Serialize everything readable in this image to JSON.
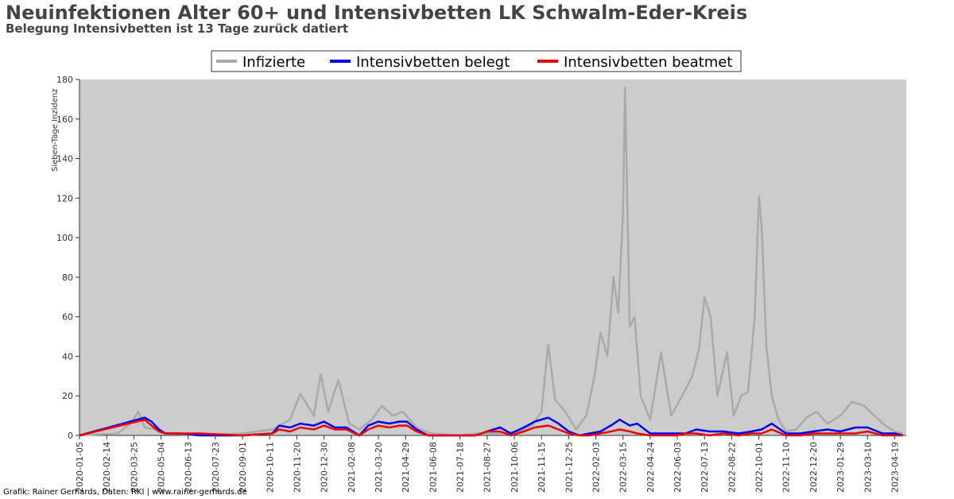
{
  "header": {
    "title": "Neuinfektionen Alter 60+ und Intensivbetten LK Schwalm-Eder-Kreis",
    "subtitle": "Belegung Intensivbetten ist 13 Tage zurück datiert"
  },
  "footer": {
    "credit": "Grafik: Rainer Gerhards, Daten: RKI | www.rainer-gerhards.de"
  },
  "colors": {
    "infected": "#aaaaaa",
    "icu_occupied": "#0000ee",
    "icu_ventilated": "#ee0000",
    "plot_bg": "#cccccc"
  },
  "chart_data": {
    "type": "line",
    "ylabel": "Sieben-Tage Inzidenz",
    "ylim": [
      0,
      180
    ],
    "yticks": [
      0,
      20,
      40,
      60,
      80,
      100,
      120,
      140,
      160,
      180
    ],
    "xlim": [
      "2020-01-05",
      "2023-05-06"
    ],
    "xticks": [
      "2020-01-05",
      "2020-02-14",
      "2020-03-25",
      "2020-05-04",
      "2020-06-13",
      "2020-07-23",
      "2020-09-01",
      "2020-10-11",
      "2020-11-20",
      "2020-12-30",
      "2021-02-08",
      "2021-03-20",
      "2021-04-29",
      "2021-06-08",
      "2021-07-18",
      "2021-08-27",
      "2021-10-06",
      "2021-11-15",
      "2021-12-25",
      "2022-02-03",
      "2022-03-15",
      "2022-04-24",
      "2022-06-03",
      "2022-07-13",
      "2022-08-22",
      "2022-10-01",
      "2022-11-10",
      "2022-12-20",
      "2023-01-29",
      "2023-03-10",
      "2023-04-19"
    ],
    "legend": {
      "position": "top-center",
      "entries": [
        "Infizierte",
        "Intensivbetten belegt",
        "Intensivbetten beatmet"
      ]
    },
    "series": [
      {
        "name": "Infizierte",
        "x": [
          "2020-01-05",
          "2020-03-01",
          "2020-03-20",
          "2020-04-01",
          "2020-04-10",
          "2020-04-25",
          "2020-05-15",
          "2020-07-01",
          "2020-09-01",
          "2020-10-15",
          "2020-11-10",
          "2020-11-25",
          "2020-12-15",
          "2020-12-25",
          "2021-01-05",
          "2021-01-20",
          "2021-02-05",
          "2021-02-20",
          "2021-03-10",
          "2021-03-25",
          "2021-04-10",
          "2021-04-25",
          "2021-05-15",
          "2021-06-05",
          "2021-07-15",
          "2021-08-15",
          "2021-09-15",
          "2021-10-15",
          "2021-11-01",
          "2021-11-15",
          "2021-11-25",
          "2021-12-05",
          "2021-12-20",
          "2022-01-05",
          "2022-01-20",
          "2022-02-01",
          "2022-02-10",
          "2022-02-20",
          "2022-03-01",
          "2022-03-08",
          "2022-03-15",
          "2022-03-18",
          "2022-03-25",
          "2022-04-01",
          "2022-04-10",
          "2022-04-24",
          "2022-05-10",
          "2022-05-25",
          "2022-06-10",
          "2022-06-25",
          "2022-07-05",
          "2022-07-13",
          "2022-07-22",
          "2022-08-01",
          "2022-08-15",
          "2022-08-25",
          "2022-09-05",
          "2022-09-15",
          "2022-09-25",
          "2022-10-01",
          "2022-10-05",
          "2022-10-12",
          "2022-10-20",
          "2022-10-30",
          "2022-11-10",
          "2022-11-25",
          "2022-12-10",
          "2022-12-25",
          "2023-01-10",
          "2023-01-29",
          "2023-02-15",
          "2023-03-05",
          "2023-03-20",
          "2023-04-05",
          "2023-04-19",
          "2023-05-01"
        ],
        "values": [
          0,
          1,
          6,
          12,
          4,
          3,
          1,
          0,
          1,
          3,
          8,
          21,
          10,
          31,
          12,
          28,
          6,
          3,
          8,
          15,
          10,
          12,
          4,
          1,
          0,
          1,
          1,
          2,
          5,
          12,
          46,
          18,
          12,
          3,
          10,
          30,
          52,
          40,
          80,
          62,
          112,
          176,
          55,
          60,
          20,
          8,
          42,
          10,
          20,
          30,
          44,
          70,
          60,
          20,
          42,
          10,
          20,
          22,
          60,
          121,
          106,
          45,
          20,
          8,
          2,
          3,
          9,
          12,
          6,
          10,
          17,
          15,
          10,
          5,
          2,
          1
        ]
      },
      {
        "name": "Intensivbetten belegt",
        "x": [
          "2020-01-05",
          "2020-04-10",
          "2020-04-20",
          "2020-05-01",
          "2020-05-10",
          "2020-05-20",
          "2020-06-01",
          "2020-07-01",
          "2020-09-01",
          "2020-10-15",
          "2020-10-25",
          "2020-11-10",
          "2020-11-25",
          "2020-12-15",
          "2020-12-30",
          "2021-01-15",
          "2021-02-01",
          "2021-02-20",
          "2021-03-05",
          "2021-03-20",
          "2021-04-05",
          "2021-04-20",
          "2021-05-01",
          "2021-05-15",
          "2021-06-01",
          "2021-08-10",
          "2021-08-27",
          "2021-09-15",
          "2021-10-01",
          "2021-10-20",
          "2021-11-05",
          "2021-11-25",
          "2021-12-10",
          "2021-12-25",
          "2022-01-10",
          "2022-01-25",
          "2022-02-10",
          "2022-02-25",
          "2022-03-10",
          "2022-03-25",
          "2022-04-05",
          "2022-04-24",
          "2022-06-01",
          "2022-06-15",
          "2022-07-01",
          "2022-07-20",
          "2022-08-10",
          "2022-09-01",
          "2022-09-20",
          "2022-10-05",
          "2022-10-20",
          "2022-11-10",
          "2022-12-01",
          "2022-12-20",
          "2023-01-10",
          "2023-01-29",
          "2023-02-20",
          "2023-03-10",
          "2023-04-01",
          "2023-04-19",
          "2023-05-01"
        ],
        "values": [
          0,
          9,
          7,
          3,
          1,
          1,
          1,
          0,
          0,
          1,
          5,
          4,
          6,
          5,
          7,
          4,
          4,
          0,
          5,
          7,
          6,
          7,
          7,
          3,
          0,
          0,
          2,
          4,
          1,
          4,
          7,
          9,
          6,
          2,
          0,
          1,
          2,
          5,
          8,
          5,
          6,
          1,
          1,
          1,
          3,
          2,
          2,
          1,
          2,
          3,
          6,
          1,
          1,
          2,
          3,
          2,
          4,
          4,
          1,
          1,
          0
        ]
      },
      {
        "name": "Intensivbetten beatmet",
        "x": [
          "2020-01-05",
          "2020-04-10",
          "2020-04-20",
          "2020-05-01",
          "2020-05-10",
          "2020-05-20",
          "2020-06-01",
          "2020-07-01",
          "2020-09-01",
          "2020-10-15",
          "2020-10-25",
          "2020-11-10",
          "2020-11-25",
          "2020-12-15",
          "2020-12-30",
          "2021-01-15",
          "2021-02-01",
          "2021-02-20",
          "2021-03-05",
          "2021-03-20",
          "2021-04-05",
          "2021-04-20",
          "2021-05-01",
          "2021-05-15",
          "2021-06-01",
          "2021-08-10",
          "2021-08-27",
          "2021-09-15",
          "2021-10-01",
          "2021-10-20",
          "2021-11-05",
          "2021-11-25",
          "2021-12-10",
          "2021-12-25",
          "2022-01-10",
          "2022-01-25",
          "2022-02-10",
          "2022-02-25",
          "2022-03-10",
          "2022-03-25",
          "2022-04-05",
          "2022-04-24",
          "2022-06-01",
          "2022-06-15",
          "2022-07-01",
          "2022-07-20",
          "2022-08-10",
          "2022-09-01",
          "2022-09-20",
          "2022-10-05",
          "2022-10-20",
          "2022-11-10",
          "2022-12-01",
          "2022-12-20",
          "2023-01-10",
          "2023-01-29",
          "2023-02-20",
          "2023-03-10",
          "2023-04-01",
          "2023-04-19",
          "2023-05-01"
        ],
        "values": [
          0,
          8,
          5,
          2,
          1,
          1,
          1,
          1,
          0,
          1,
          3,
          2,
          4,
          3,
          5,
          3,
          3,
          0,
          3,
          5,
          4,
          5,
          5,
          2,
          0,
          0,
          2,
          2,
          0,
          2,
          4,
          5,
          3,
          1,
          0,
          0,
          1,
          2,
          3,
          2,
          1,
          0,
          0,
          1,
          1,
          0,
          1,
          0,
          1,
          1,
          3,
          0,
          0,
          1,
          1,
          1,
          1,
          2,
          0,
          0,
          0
        ]
      }
    ]
  }
}
